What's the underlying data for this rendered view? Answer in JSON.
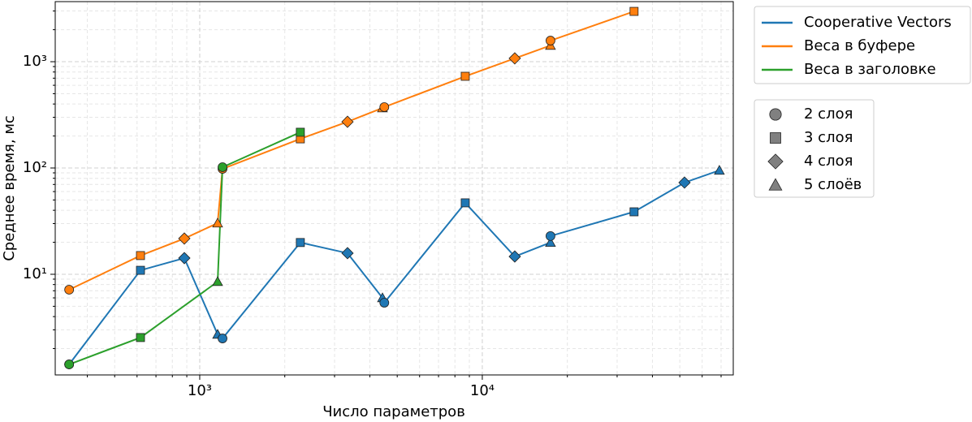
{
  "chart_data": {
    "type": "line",
    "xlabel": "Число параметров",
    "ylabel": "Среднее время, мс",
    "xscale": "log",
    "yscale": "log",
    "grid": true,
    "legend": "outside upper right",
    "xlim": [
      308,
      77300
    ],
    "ylim": [
      1.13,
      3675
    ],
    "xticks": [
      {
        "value": 1000,
        "label": "10³"
      },
      {
        "value": 10000,
        "label": "10⁴"
      }
    ],
    "yticks": [
      {
        "value": 10,
        "label": "10¹"
      },
      {
        "value": 100,
        "label": "10²"
      },
      {
        "value": 1000,
        "label": "10³"
      }
    ],
    "xminorticks": [
      400,
      500,
      600,
      700,
      800,
      900,
      2000,
      3000,
      4000,
      5000,
      6000,
      7000,
      8000,
      9000,
      20000,
      30000,
      40000,
      50000,
      60000,
      70000
    ],
    "yminorticks": [
      2,
      3,
      4,
      5,
      6,
      7,
      8,
      9,
      20,
      30,
      40,
      50,
      60,
      70,
      80,
      90,
      200,
      300,
      400,
      500,
      600,
      700,
      800,
      900,
      2000,
      3000
    ],
    "series": [
      {
        "name": "Cooperative Vectors",
        "color": "#1f77b4",
        "x": [
          345,
          617,
          882,
          1157,
          1204,
          2270,
          3334,
          4433,
          4500,
          8703,
          13030,
          17430,
          17430,
          34440,
          51960,
          69030
        ],
        "values": [
          1.42,
          10.9,
          14.2,
          2.72,
          2.49,
          19.9,
          15.8,
          6.0,
          5.4,
          47,
          14.7,
          19.9,
          22.9,
          38.7,
          72.9,
          94.9
        ],
        "markers": [
          "circle",
          "square",
          "diamond",
          "triangle",
          "circle",
          "square",
          "diamond",
          "triangle",
          "circle",
          "square",
          "diamond",
          "triangle",
          "circle",
          "square",
          "diamond",
          "triangle"
        ]
      },
      {
        "name": "Веса в буфере",
        "color": "#ff7f0e",
        "x": [
          345,
          617,
          882,
          1157,
          1204,
          2270,
          3334,
          4433,
          4500,
          8703,
          13030,
          17430,
          17430,
          34440
        ],
        "values": [
          7.16,
          15.0,
          21.7,
          30.3,
          98.2,
          188,
          272,
          367,
          374,
          729,
          1075,
          1422,
          1579,
          2974
        ],
        "markers": [
          "circle",
          "square",
          "diamond",
          "triangle",
          "circle",
          "square",
          "diamond",
          "triangle",
          "circle",
          "square",
          "diamond",
          "triangle",
          "circle",
          "square"
        ]
      },
      {
        "name": "Веса в заголовке",
        "color": "#2ca02c",
        "x": [
          345,
          617,
          1157,
          1204,
          2270
        ],
        "values": [
          1.42,
          2.54,
          8.53,
          101.8,
          217
        ],
        "markers": [
          "circle",
          "square",
          "triangle",
          "circle",
          "square"
        ]
      }
    ],
    "marker_legend": [
      {
        "label": "2 слоя",
        "marker": "circle"
      },
      {
        "label": "3 слоя",
        "marker": "square"
      },
      {
        "label": "4 слоя",
        "marker": "diamond"
      },
      {
        "label": "5 слоёв",
        "marker": "triangle"
      }
    ]
  }
}
